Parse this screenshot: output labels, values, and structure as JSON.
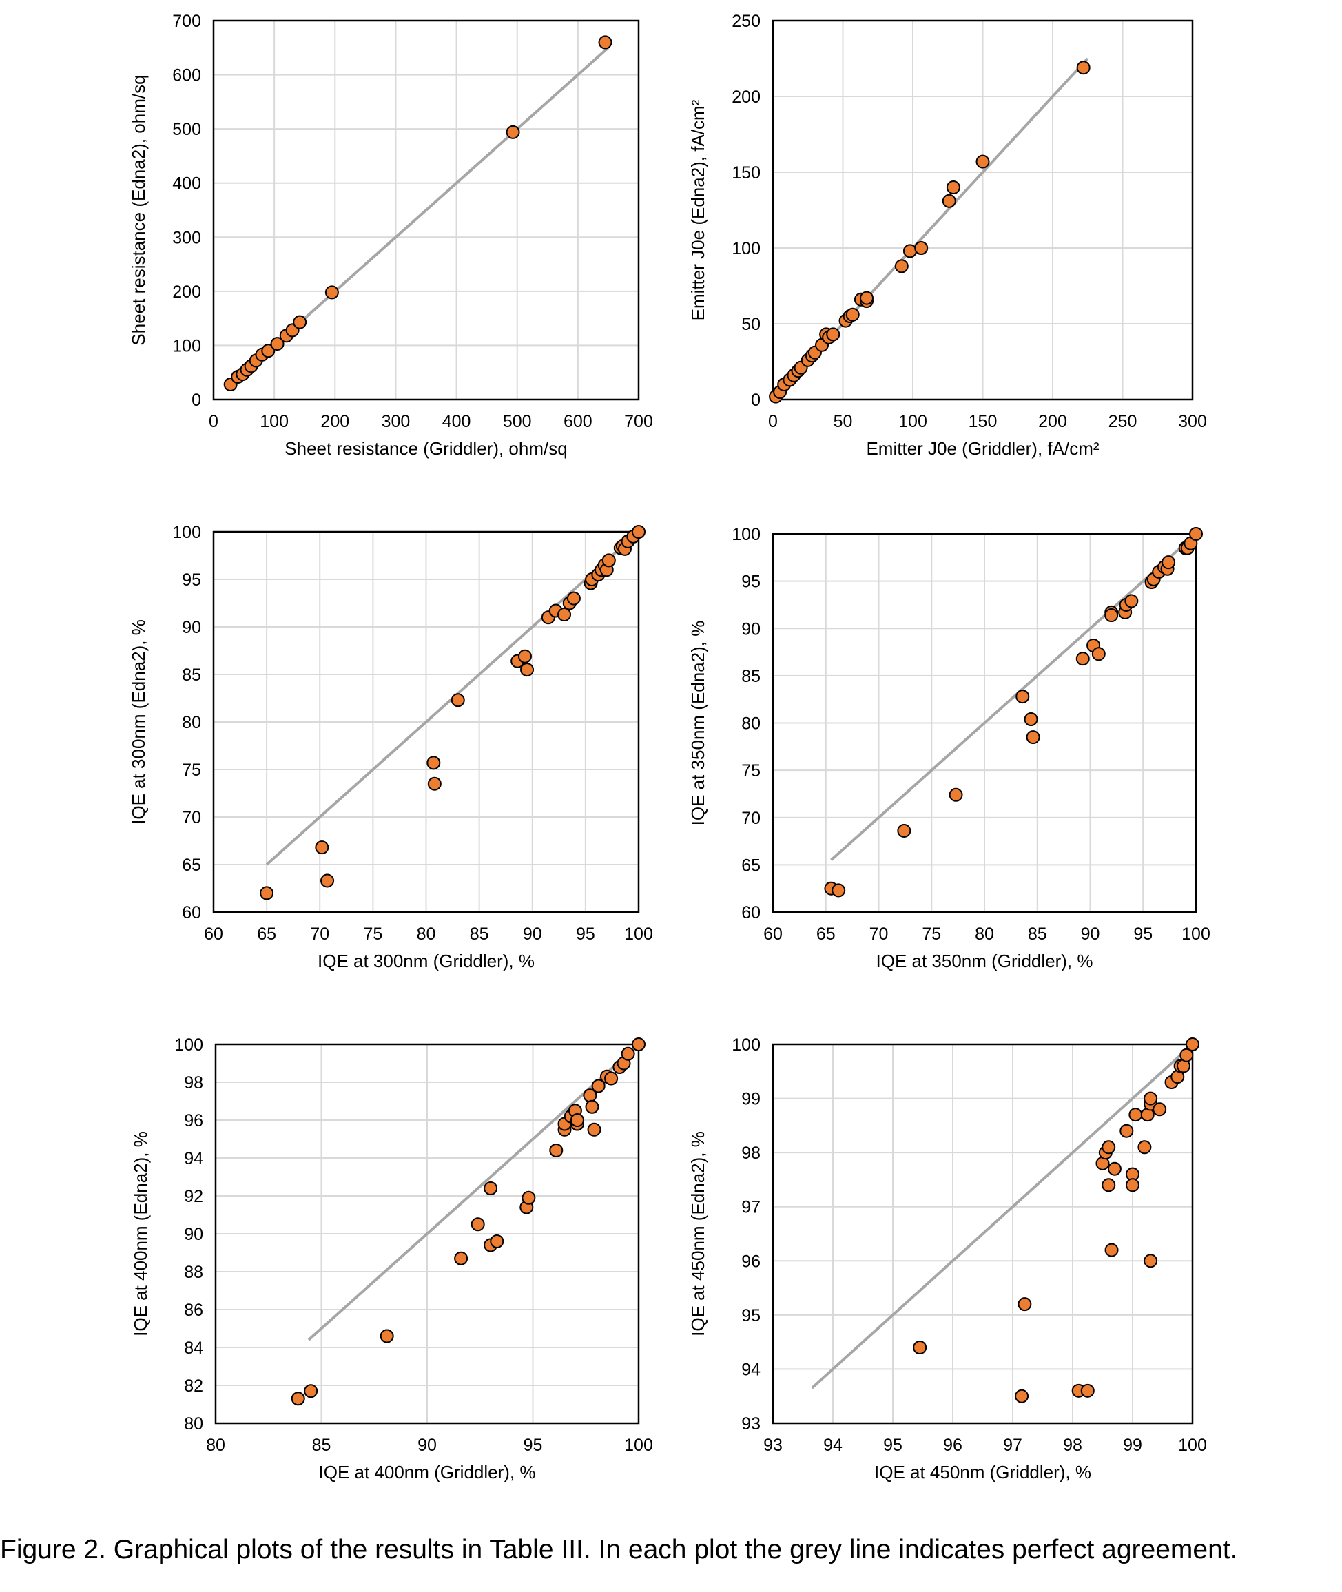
{
  "colors": {
    "marker": "#ED7D31",
    "line": "#A6A6A6",
    "grid": "#D9D9D9"
  },
  "caption": "Figure 2. Graphical plots of the results in Table III.  In each plot the grey line indicates perfect agreement.",
  "chart_data": [
    {
      "type": "scatter",
      "xlabel": "Sheet resistance (Griddler), ohm/sq",
      "ylabel": "Sheet resistance (Edna2), ohm/sq",
      "xlim": [
        0,
        700
      ],
      "ylim": [
        0,
        700
      ],
      "step": 100,
      "grid": true,
      "agreement_line": [
        30,
        650
      ],
      "points": [
        [
          28,
          28
        ],
        [
          40,
          42
        ],
        [
          48,
          47
        ],
        [
          55,
          55
        ],
        [
          62,
          62
        ],
        [
          70,
          72
        ],
        [
          80,
          83
        ],
        [
          90,
          90
        ],
        [
          105,
          103
        ],
        [
          120,
          118
        ],
        [
          130,
          128
        ],
        [
          142,
          143
        ],
        [
          195,
          198
        ],
        [
          493,
          494
        ],
        [
          645,
          660
        ]
      ]
    },
    {
      "type": "scatter",
      "xlabel": "Emitter J0e (Griddler), fA/cm²",
      "ylabel": "Emitter J0e (Edna2), fA/cm²",
      "xlim": [
        0,
        300
      ],
      "ylim": [
        0,
        250
      ],
      "xstep": 50,
      "ystep": 50,
      "grid": true,
      "agreement_line": [
        0,
        225
      ],
      "points": [
        [
          2,
          2
        ],
        [
          5,
          5
        ],
        [
          8,
          10
        ],
        [
          12,
          13
        ],
        [
          15,
          16
        ],
        [
          18,
          19
        ],
        [
          20,
          21
        ],
        [
          25,
          26
        ],
        [
          28,
          29
        ],
        [
          30,
          31
        ],
        [
          35,
          36
        ],
        [
          38,
          43
        ],
        [
          40,
          41
        ],
        [
          43,
          43
        ],
        [
          52,
          52
        ],
        [
          55,
          55
        ],
        [
          57,
          56
        ],
        [
          63,
          66
        ],
        [
          67,
          65
        ],
        [
          67,
          67
        ],
        [
          92,
          88
        ],
        [
          98,
          98
        ],
        [
          106,
          100
        ],
        [
          126,
          131
        ],
        [
          129,
          140
        ],
        [
          150,
          157
        ],
        [
          222,
          219
        ]
      ]
    },
    {
      "type": "scatter",
      "xlabel": "IQE at 300nm (Griddler), %",
      "ylabel": "IQE at 300nm (Edna2), %",
      "xlim": [
        60,
        100
      ],
      "ylim": [
        60,
        100
      ],
      "step": 5,
      "grid": true,
      "agreement_line": [
        65,
        100
      ],
      "points": [
        [
          65,
          62
        ],
        [
          70.2,
          66.8
        ],
        [
          70.7,
          63.3
        ],
        [
          80.7,
          75.7
        ],
        [
          80.8,
          73.5
        ],
        [
          83,
          82.3
        ],
        [
          88.6,
          86.4
        ],
        [
          89.3,
          86.9
        ],
        [
          89.5,
          85.5
        ],
        [
          91.5,
          91
        ],
        [
          92.2,
          91.7
        ],
        [
          93,
          91.3
        ],
        [
          93.5,
          92.5
        ],
        [
          93.9,
          93
        ],
        [
          95.5,
          94.6
        ],
        [
          95.6,
          95
        ],
        [
          96.2,
          95.5
        ],
        [
          96.5,
          96
        ],
        [
          96.8,
          96.5
        ],
        [
          97,
          96
        ],
        [
          97.2,
          97
        ],
        [
          98.3,
          98.3
        ],
        [
          98.5,
          98.5
        ],
        [
          98.7,
          98.2
        ],
        [
          99,
          99
        ],
        [
          99.5,
          99.5
        ],
        [
          100,
          100
        ]
      ]
    },
    {
      "type": "scatter",
      "xlabel": "IQE at 350nm (Griddler), %",
      "ylabel": "IQE at 350nm (Edna2), %",
      "xlim": [
        60,
        100
      ],
      "ylim": [
        60,
        100
      ],
      "step": 5,
      "grid": true,
      "agreement_line": [
        65.5,
        100
      ],
      "points": [
        [
          65.5,
          62.5
        ],
        [
          66.2,
          62.3
        ],
        [
          72.4,
          68.6
        ],
        [
          77.3,
          72.4
        ],
        [
          83.6,
          82.8
        ],
        [
          84.4,
          80.4
        ],
        [
          84.6,
          78.5
        ],
        [
          89.3,
          86.8
        ],
        [
          90.3,
          88.2
        ],
        [
          90.8,
          87.3
        ],
        [
          92,
          91.7
        ],
        [
          92,
          91.4
        ],
        [
          93.3,
          91.7
        ],
        [
          93.4,
          92.5
        ],
        [
          93.9,
          92.9
        ],
        [
          95.8,
          94.9
        ],
        [
          96,
          95.2
        ],
        [
          96.5,
          96
        ],
        [
          97,
          96.5
        ],
        [
          97.3,
          96.3
        ],
        [
          97.4,
          97
        ],
        [
          99,
          98.5
        ],
        [
          99.2,
          98.5
        ],
        [
          99.5,
          99
        ],
        [
          100,
          100
        ]
      ]
    },
    {
      "type": "scatter",
      "xlabel": "IQE at 400nm (Griddler), %",
      "ylabel": "IQE at 400nm (Edna2), %",
      "xlim": [
        80,
        100
      ],
      "ylim": [
        80,
        100
      ],
      "xstep": 5,
      "ystep": 2,
      "grid": true,
      "agreement_line": [
        84.4,
        100
      ],
      "points": [
        [
          83.9,
          81.3
        ],
        [
          84.5,
          81.7
        ],
        [
          88.1,
          84.6
        ],
        [
          91.6,
          88.7
        ],
        [
          92.4,
          90.5
        ],
        [
          93,
          89.4
        ],
        [
          93,
          92.4
        ],
        [
          93.3,
          89.6
        ],
        [
          94.7,
          91.4
        ],
        [
          94.8,
          91.9
        ],
        [
          96.1,
          94.4
        ],
        [
          96.5,
          95.5
        ],
        [
          96.5,
          95.8
        ],
        [
          96.8,
          96.2
        ],
        [
          97,
          96.5
        ],
        [
          97.1,
          95.8
        ],
        [
          97.1,
          96
        ],
        [
          97.7,
          97.3
        ],
        [
          97.8,
          96.7
        ],
        [
          97.9,
          95.5
        ],
        [
          98.1,
          97.8
        ],
        [
          98.5,
          98.3
        ],
        [
          98.7,
          98.2
        ],
        [
          99.1,
          98.8
        ],
        [
          99.3,
          99
        ],
        [
          99.5,
          99.5
        ],
        [
          100,
          100
        ]
      ]
    },
    {
      "type": "scatter",
      "xlabel": "IQE at 450nm (Griddler), %",
      "ylabel": "IQE at 450nm (Edna2), %",
      "xlim": [
        93,
        100
      ],
      "ylim": [
        93,
        100
      ],
      "step": 1,
      "grid": true,
      "agreement_line": [
        93.65,
        100
      ],
      "points": [
        [
          95.45,
          94.4
        ],
        [
          97.15,
          93.5
        ],
        [
          97.2,
          95.2
        ],
        [
          98.1,
          93.6
        ],
        [
          98.25,
          93.6
        ],
        [
          98.5,
          97.8
        ],
        [
          98.55,
          98
        ],
        [
          98.6,
          97.4
        ],
        [
          98.6,
          98.1
        ],
        [
          98.65,
          96.2
        ],
        [
          98.7,
          97.7
        ],
        [
          98.9,
          98.4
        ],
        [
          99,
          97.6
        ],
        [
          99,
          97.4
        ],
        [
          99.05,
          98.7
        ],
        [
          99.2,
          98.1
        ],
        [
          99.25,
          98.7
        ],
        [
          99.3,
          96
        ],
        [
          99.3,
          98.9
        ],
        [
          99.3,
          99
        ],
        [
          99.45,
          98.8
        ],
        [
          99.65,
          99.3
        ],
        [
          99.75,
          99.4
        ],
        [
          99.8,
          99.6
        ],
        [
          99.85,
          99.6
        ],
        [
          99.9,
          99.8
        ],
        [
          100,
          100
        ]
      ]
    }
  ]
}
